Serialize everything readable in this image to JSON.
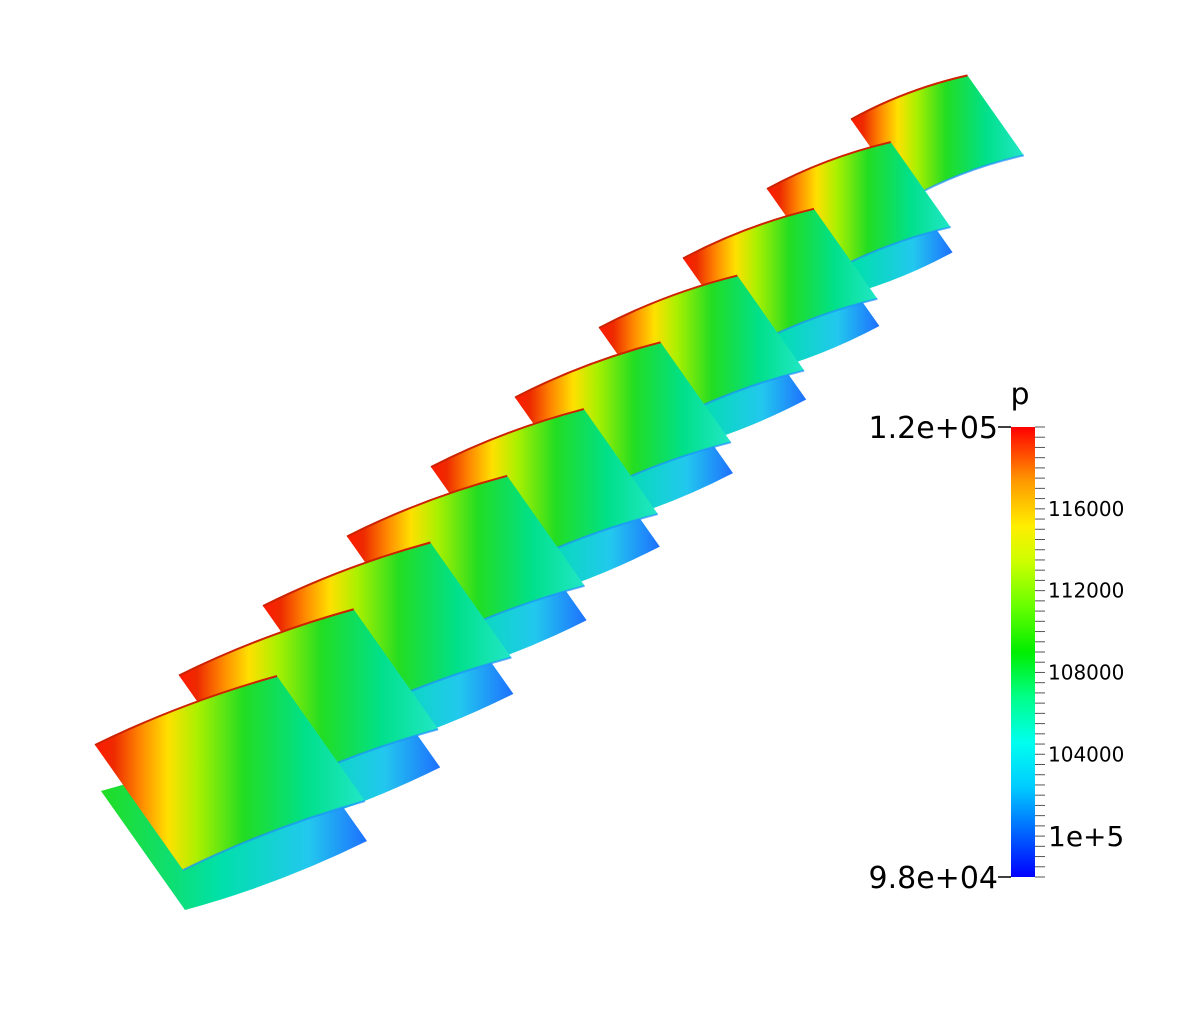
{
  "legend": {
    "variable": "p",
    "max_label": "1.2e+05",
    "min_label": "9.8e+04",
    "range": [
      98000,
      120000
    ],
    "ticks": [
      {
        "value": 116000,
        "label": "116000"
      },
      {
        "value": 112000,
        "label": "112000"
      },
      {
        "value": 108000,
        "label": "108000"
      },
      {
        "value": 104000,
        "label": "104000"
      },
      {
        "value": 100000,
        "label": "1e+5"
      }
    ],
    "colormap": [
      "#0000ff",
      "#00a8ff",
      "#00ffff",
      "#00ff99",
      "#00ee00",
      "#66ff00",
      "#ccff00",
      "#ffff00",
      "#ffaa00",
      "#ff6600",
      "#ff0000"
    ]
  },
  "blades": {
    "count": 10,
    "colors": {
      "leading_edge": "#ff1a00",
      "pressure_mid": "#ffcc00",
      "suction_green": "#22dd22",
      "trailing_cyan": "#22e6c8",
      "low_pressure": "#1e90ff"
    }
  }
}
